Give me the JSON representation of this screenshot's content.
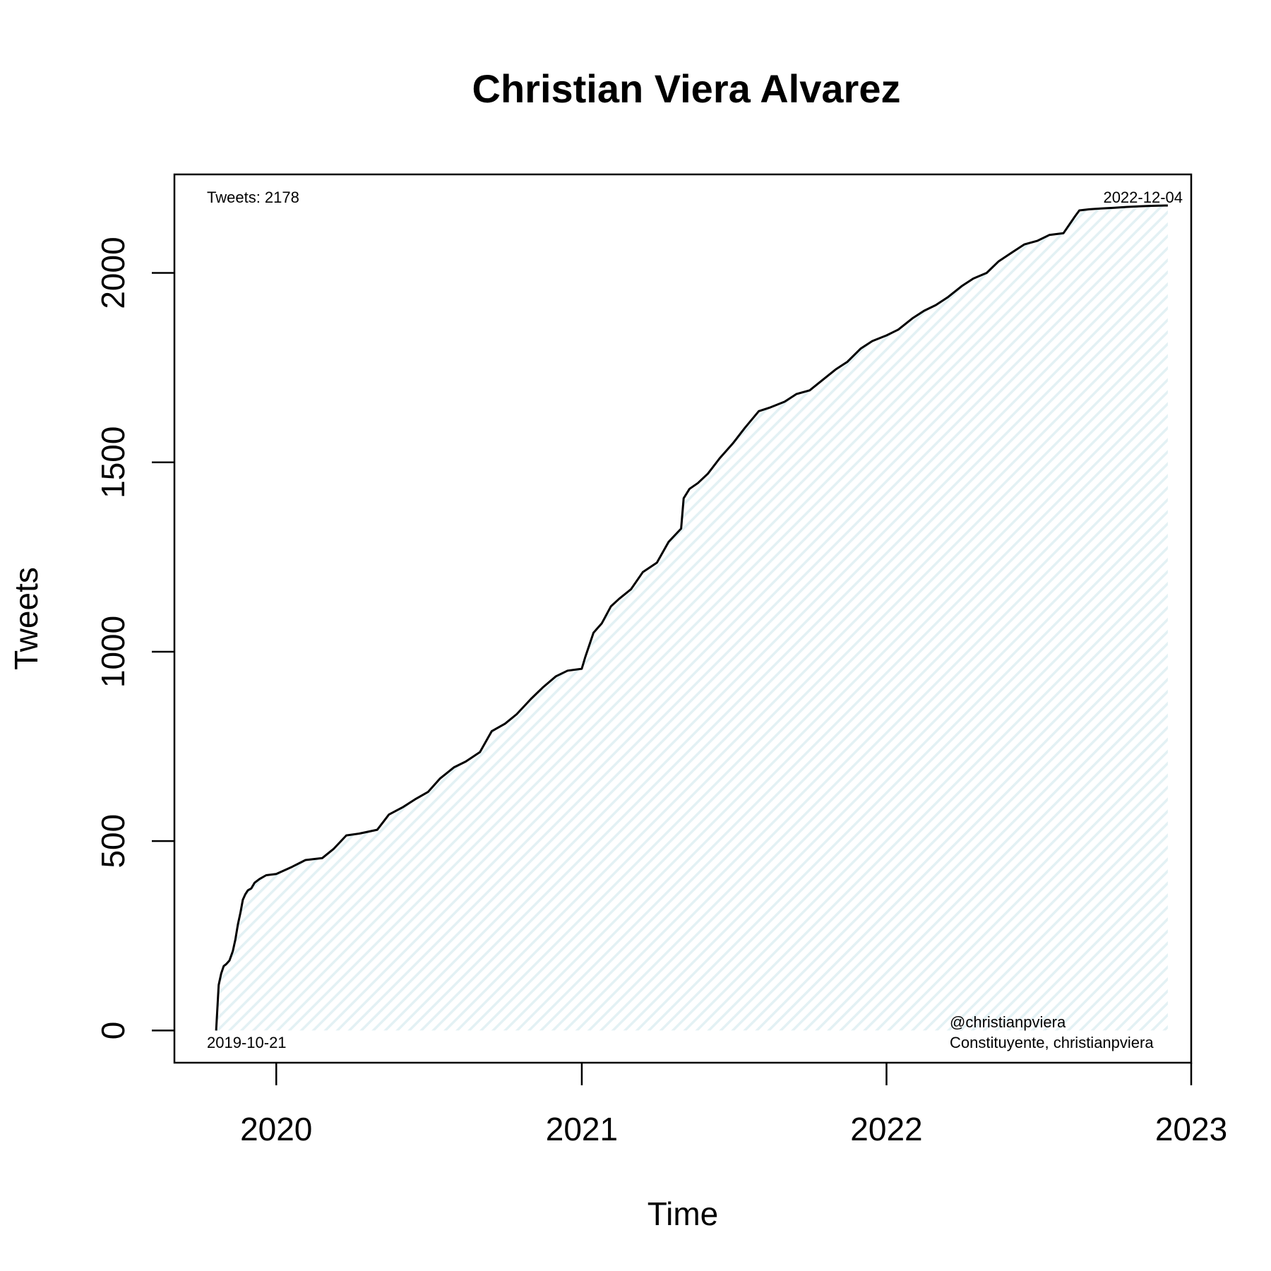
{
  "chart_data": {
    "type": "area",
    "title": "Christian Viera Alvarez",
    "xlabel": "Time",
    "ylabel": "Tweets",
    "x_ticks": [
      "2020",
      "2021",
      "2022",
      "2023"
    ],
    "y_ticks": [
      0,
      500,
      1000,
      1500,
      2000
    ],
    "xlim": [
      "2019-09-01",
      "2023-01-01"
    ],
    "ylim": [
      -85,
      2260
    ],
    "fill_color": "#e3f1f4",
    "line_color": "#000000",
    "grid": false,
    "legend": "none",
    "annotations": {
      "top_left": "Tweets: 2178",
      "top_right": "2022-12-04",
      "bottom_left": "2019-10-21",
      "bottom_right_1": "@christianpviera",
      "bottom_right_2": "Constituyente, christianpviera"
    },
    "series": [
      {
        "x": [
          "2019-10-21",
          "2019-10-24",
          "2019-10-27",
          "2019-10-30",
          "2019-11-02",
          "2019-11-06",
          "2019-11-10",
          "2019-11-13",
          "2019-11-16",
          "2019-11-19",
          "2019-11-22",
          "2019-11-25",
          "2019-11-28",
          "2019-12-02",
          "2019-12-06",
          "2019-12-12",
          "2019-12-20",
          "2020-01-01",
          "2020-01-20",
          "2020-02-05",
          "2020-02-25",
          "2020-03-10",
          "2020-03-25",
          "2020-04-10",
          "2020-05-01",
          "2020-05-15",
          "2020-06-01",
          "2020-06-15",
          "2020-07-01",
          "2020-07-15",
          "2020-08-01",
          "2020-08-15",
          "2020-09-01",
          "2020-09-15",
          "2020-10-01",
          "2020-10-15",
          "2020-11-01",
          "2020-11-15",
          "2020-12-01",
          "2020-12-15",
          "2021-01-01",
          "2021-01-05",
          "2021-01-15",
          "2021-01-25",
          "2021-02-05",
          "2021-02-15",
          "2021-03-01",
          "2021-03-15",
          "2021-04-01",
          "2021-04-15",
          "2021-04-30",
          "2021-05-03",
          "2021-05-10",
          "2021-05-20",
          "2021-06-01",
          "2021-06-15",
          "2021-07-01",
          "2021-07-15",
          "2021-08-01",
          "2021-08-15",
          "2021-09-01",
          "2021-09-15",
          "2021-10-01",
          "2021-10-15",
          "2021-11-01",
          "2021-11-15",
          "2021-12-01",
          "2021-12-15",
          "2022-01-01",
          "2022-01-15",
          "2022-02-01",
          "2022-02-15",
          "2022-03-01",
          "2022-03-15",
          "2022-04-01",
          "2022-04-15",
          "2022-05-01",
          "2022-05-15",
          "2022-06-01",
          "2022-06-15",
          "2022-07-01",
          "2022-07-15",
          "2022-08-01",
          "2022-08-15",
          "2022-08-20",
          "2022-09-01",
          "2022-09-15",
          "2022-10-01",
          "2022-10-15",
          "2022-11-01",
          "2022-11-15",
          "2022-12-04"
        ],
        "y": [
          0,
          120,
          150,
          170,
          175,
          185,
          210,
          240,
          280,
          310,
          345,
          360,
          370,
          375,
          390,
          400,
          410,
          413,
          432,
          450,
          455,
          480,
          515,
          520,
          530,
          570,
          590,
          610,
          630,
          665,
          695,
          710,
          735,
          790,
          810,
          835,
          875,
          905,
          935,
          950,
          955,
          985,
          1050,
          1075,
          1120,
          1140,
          1165,
          1210,
          1235,
          1290,
          1325,
          1405,
          1430,
          1445,
          1470,
          1510,
          1550,
          1590,
          1635,
          1645,
          1660,
          1680,
          1690,
          1715,
          1745,
          1765,
          1800,
          1820,
          1835,
          1850,
          1880,
          1900,
          1915,
          1935,
          1965,
          1985,
          2000,
          2030,
          2055,
          2075,
          2085,
          2100,
          2105,
          2150,
          2165,
          2168,
          2170,
          2172,
          2174,
          2176,
          2177,
          2178
        ]
      }
    ]
  }
}
